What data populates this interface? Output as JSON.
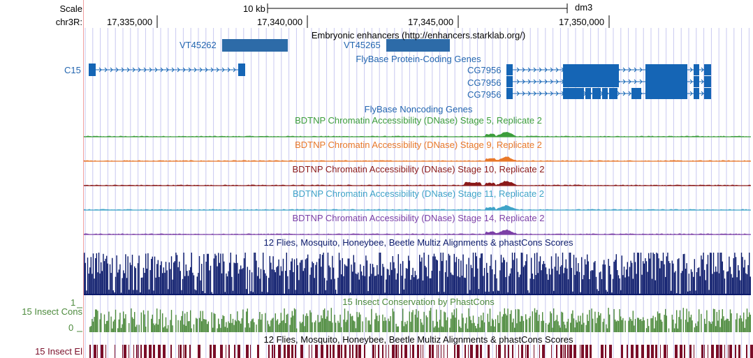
{
  "header": {
    "scale_label": "Scale",
    "chrom_label": "chr3R:",
    "scale_bar_text": "10 kb",
    "assembly": "dm3",
    "ticks": [
      "17,335,000",
      "17,340,000",
      "17,345,000",
      "17,350,000"
    ]
  },
  "tracks": {
    "enhancers": {
      "title": "Embryonic enhancers (http://enhancers.starklab.org/)",
      "items": [
        "VT45262",
        "VT45265"
      ]
    },
    "protein_coding": {
      "title": "FlyBase Protein-Coding Genes",
      "genes": [
        "C15",
        "CG7956",
        "CG7956",
        "CG7956"
      ]
    },
    "noncoding": {
      "title": "FlyBase Noncoding Genes"
    },
    "dnase": [
      {
        "title": "BDTNP Chromatin Accessibility (DNase) Stage 5, Replicate 2",
        "color": "#3c9d3c"
      },
      {
        "title": "BDTNP Chromatin Accessibility (DNase) Stage 9, Replicate 2",
        "color": "#e8782a"
      },
      {
        "title": "BDTNP Chromatin Accessibility (DNase) Stage 10, Replicate 2",
        "color": "#8b1a1a"
      },
      {
        "title": "BDTNP Chromatin Accessibility (DNase) Stage 11, Replicate 2",
        "color": "#3fa3c8"
      },
      {
        "title": "BDTNP Chromatin Accessibility (DNase) Stage 14, Replicate 2",
        "color": "#7b3fa6"
      }
    ],
    "multiz": {
      "title": "12 Flies, Mosquito, Honeybee, Beetle Multiz Alignments & phastCons Scores",
      "color": "#0b1a6b"
    },
    "cons": {
      "title": "15 Insect Conservation by PhastCons",
      "side_label": "15 Insect Cons",
      "max_label": "1",
      "min_label": "0",
      "color": "#4c8a3c"
    },
    "elements": {
      "title": "12 Flies, Mosquito, Honeybee, Beetle Multiz Alignments & phastCons Scores",
      "side_label": "15 Insect El",
      "color": "#7a0e28"
    }
  },
  "colors": {
    "gene": "#1565b5",
    "enhancer": "#2d6ba8",
    "label_blue": "#2466b0",
    "grid": "#c8c8f0",
    "left_line": "#f0a0a0"
  }
}
